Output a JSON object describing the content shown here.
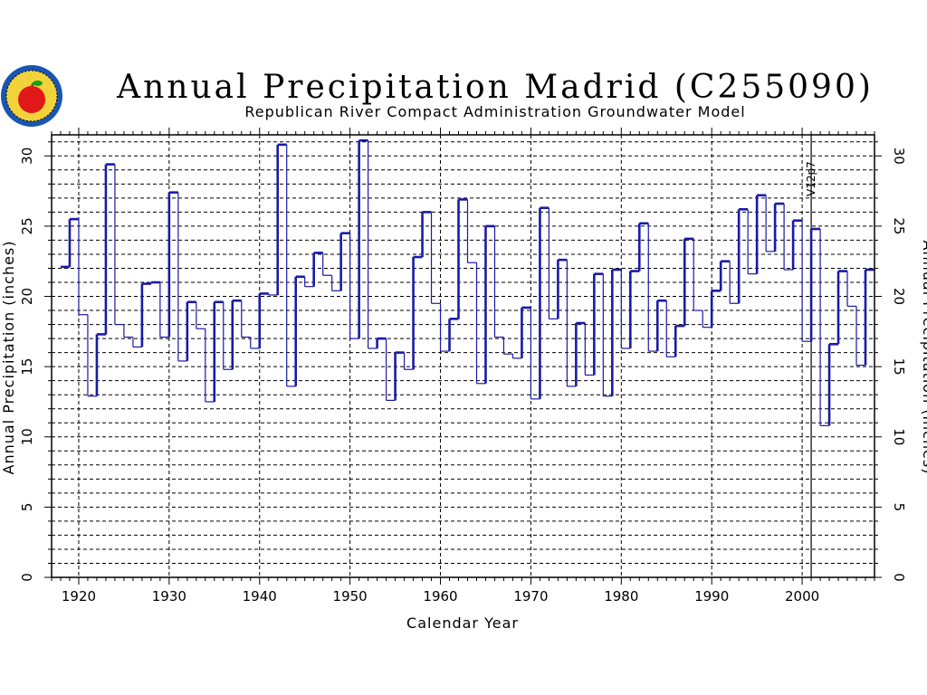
{
  "header": {
    "title": "Annual Precipitation Madrid (C255090)",
    "subtitle": "Republican River Compact Administration Groundwater Model"
  },
  "chart_data": {
    "type": "step",
    "title": "Annual Precipitation Madrid (C255090)",
    "subtitle": "Republican River Compact Administration Groundwater Model",
    "xlabel": "Calendar Year",
    "ylabel": "Annual Precipitation (inches)",
    "ylabel_right": "Annual Precipitation (inches)",
    "xlim": [
      1917,
      2008
    ],
    "ylim": [
      0,
      31.5
    ],
    "xticks": [
      "1920",
      "1930",
      "1940",
      "1950",
      "1960",
      "1970",
      "1980",
      "1990",
      "2000"
    ],
    "yticks": [
      "0",
      "5",
      "10",
      "15",
      "20",
      "25",
      "30"
    ],
    "grid": true,
    "line_color": "#1a1aa8",
    "marker": {
      "year": 2001,
      "label": "V12p7"
    },
    "series": [
      {
        "years": [
          1918,
          1919,
          1920,
          1921,
          1922,
          1923,
          1924,
          1925,
          1926,
          1927,
          1928,
          1929,
          1930,
          1931,
          1932,
          1933,
          1934,
          1935,
          1936,
          1937,
          1938,
          1939,
          1940,
          1941,
          1942,
          1943,
          1944,
          1945,
          1946,
          1947,
          1948,
          1949,
          1950,
          1951,
          1952,
          1953,
          1954,
          1955,
          1956,
          1957,
          1958,
          1959,
          1960,
          1961,
          1962,
          1963,
          1964,
          1965,
          1966,
          1967,
          1968,
          1969,
          1970,
          1971,
          1972,
          1973,
          1974,
          1975,
          1976,
          1977,
          1978,
          1979,
          1980,
          1981,
          1982,
          1983,
          1984,
          1985,
          1986,
          1987,
          1988,
          1989,
          1990,
          1991,
          1992,
          1993,
          1994,
          1995,
          1996,
          1997,
          1998,
          1999,
          2000,
          2001,
          2002,
          2003,
          2004,
          2005,
          2006,
          2007
        ],
        "values": [
          22.1,
          25.5,
          18.7,
          12.9,
          17.3,
          29.4,
          18.0,
          17.1,
          16.4,
          20.9,
          21.0,
          17.1,
          27.4,
          15.4,
          19.6,
          17.7,
          12.5,
          19.6,
          14.8,
          19.7,
          17.1,
          16.3,
          20.2,
          20.1,
          30.8,
          13.6,
          21.4,
          20.7,
          23.1,
          21.5,
          20.4,
          24.5,
          17.0,
          31.1,
          16.3,
          17.0,
          12.6,
          16.0,
          14.8,
          22.8,
          26.0,
          19.5,
          16.1,
          18.4,
          26.9,
          22.4,
          13.8,
          25.0,
          17.1,
          15.9,
          15.6,
          19.2,
          12.7,
          26.3,
          18.4,
          22.6,
          13.6,
          18.1,
          14.4,
          21.6,
          12.9,
          21.9,
          16.3,
          21.8,
          25.2,
          16.1,
          19.7,
          15.7,
          17.9,
          24.1,
          19.0,
          17.8,
          20.4,
          22.5,
          19.5,
          26.2,
          21.6,
          27.2,
          23.2,
          26.6,
          21.9,
          25.4,
          16.8,
          24.8,
          10.8,
          16.6,
          21.8,
          19.3,
          15.1,
          21.9
        ]
      }
    ]
  },
  "logo": {
    "name": "seal-logo"
  }
}
